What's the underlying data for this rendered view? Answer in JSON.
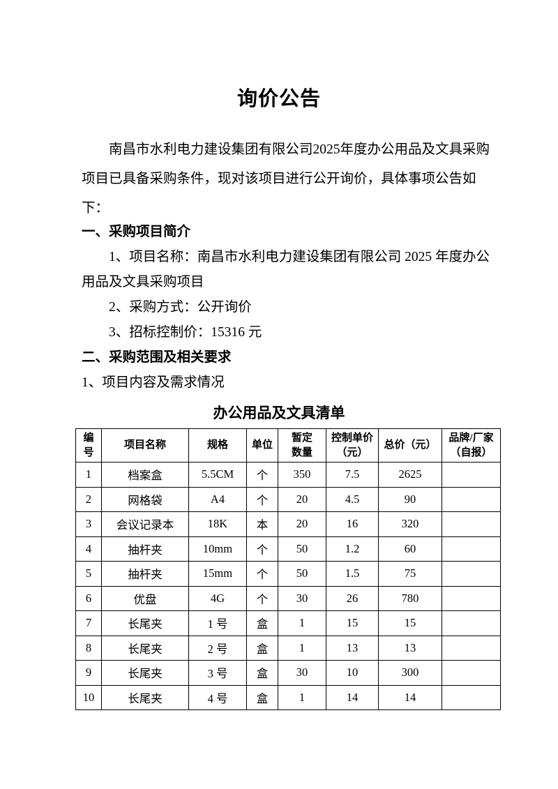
{
  "document": {
    "title": "询价公告",
    "paragraph_lines": [
      "南昌市水利电力建设集团有限公司2025年度办公用品及文具采购",
      "项目已具备采购条件，现对该项目进行公开询价，具体事项公告如",
      "下："
    ],
    "sections": [
      {
        "style": "heading",
        "indent": false,
        "text": "一、采购项目简介"
      },
      {
        "style": "item",
        "indent": true,
        "text": "1、项目名称：南昌市水利电力建设集团有限公司 2025 年度办公"
      },
      {
        "style": "item",
        "indent": false,
        "text": "用品及文具采购项目"
      },
      {
        "style": "item",
        "indent": true,
        "text": "2、采购方式：公开询价"
      },
      {
        "style": "item",
        "indent": true,
        "text": "3、招标控制价：15316 元"
      },
      {
        "style": "heading",
        "indent": false,
        "text": "二、采购范围及相关要求"
      },
      {
        "style": "item",
        "indent": false,
        "text": "1、项目内容及需求情况"
      }
    ],
    "table": {
      "title": "办公用品及文具清单",
      "headers": [
        {
          "lines": [
            "编",
            "号"
          ]
        },
        {
          "lines": [
            "项目名称"
          ]
        },
        {
          "lines": [
            "规格"
          ]
        },
        {
          "lines": [
            "单位"
          ]
        },
        {
          "lines": [
            "暂定",
            "数量"
          ]
        },
        {
          "lines": [
            "控制单价",
            "（元）"
          ]
        },
        {
          "lines": [
            "总价（元）"
          ]
        },
        {
          "lines": [
            "品牌/厂家",
            "（自报）"
          ]
        }
      ],
      "rows": [
        [
          "1",
          "档案盒",
          "5.5CM",
          "个",
          "350",
          "7.5",
          "2625",
          ""
        ],
        [
          "2",
          "网格袋",
          "A4",
          "个",
          "20",
          "4.5",
          "90",
          ""
        ],
        [
          "3",
          "会议记录本",
          "18K",
          "本",
          "20",
          "16",
          "320",
          ""
        ],
        [
          "4",
          "抽杆夹",
          "10mm",
          "个",
          "50",
          "1.2",
          "60",
          ""
        ],
        [
          "5",
          "抽杆夹",
          "15mm",
          "个",
          "50",
          "1.5",
          "75",
          ""
        ],
        [
          "6",
          "优盘",
          "4G",
          "个",
          "30",
          "26",
          "780",
          ""
        ],
        [
          "7",
          "长尾夹",
          "1 号",
          "盒",
          "1",
          "15",
          "15",
          ""
        ],
        [
          "8",
          "长尾夹",
          "2 号",
          "盒",
          "1",
          "13",
          "13",
          ""
        ],
        [
          "9",
          "长尾夹",
          "3 号",
          "盒",
          "30",
          "10",
          "300",
          ""
        ],
        [
          "10",
          "长尾夹",
          "4 号",
          "盒",
          "1",
          "14",
          "14",
          ""
        ]
      ]
    }
  }
}
